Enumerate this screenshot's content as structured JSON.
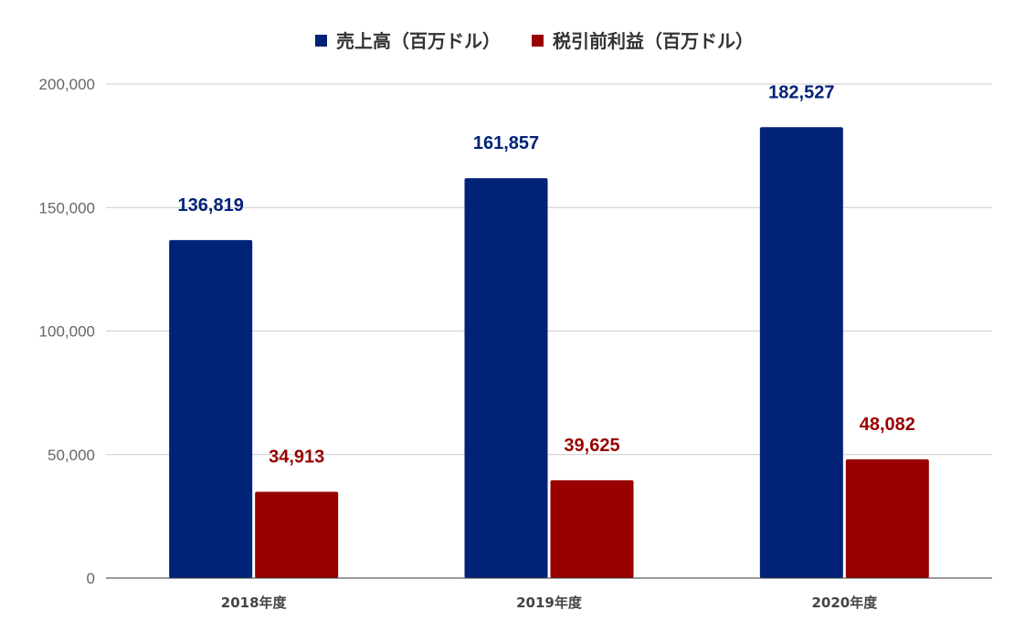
{
  "chart_data": {
    "type": "bar",
    "categories": [
      "2018年度",
      "2019年度",
      "2020年度"
    ],
    "series": [
      {
        "name": "売上高（百万ドル）",
        "values": [
          136819,
          161857,
          182527
        ],
        "color": "#002277",
        "label_color": "#002277"
      },
      {
        "name": "税引前利益（百万ドル）",
        "values": [
          34913,
          39625,
          48082
        ],
        "color": "#990000",
        "label_color": "#990000"
      }
    ],
    "data_labels": [
      [
        "136,819",
        "161,857",
        "182,527"
      ],
      [
        "34,913",
        "39,625",
        "48,082"
      ]
    ],
    "ylim": [
      0,
      200000
    ],
    "yticks": [
      0,
      50000,
      100000,
      150000,
      200000
    ],
    "ytick_labels": [
      "0",
      "50,000",
      "100,000",
      "150,000",
      "200,000"
    ],
    "grid": true,
    "legend_position": "top-center",
    "gridline_color": "#cccccc",
    "baseline_color": "#333333"
  }
}
